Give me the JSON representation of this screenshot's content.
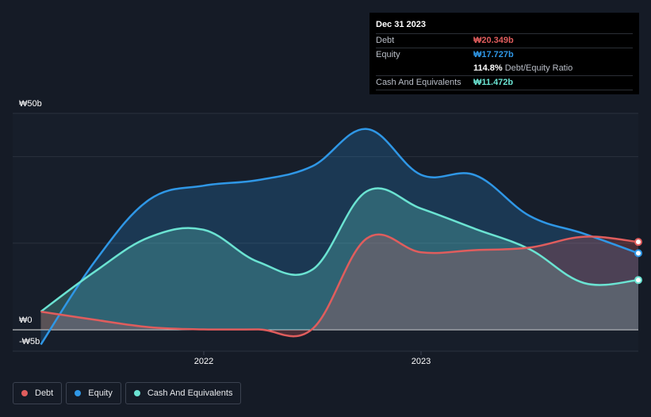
{
  "tooltip": {
    "date": "Dec 31 2023",
    "rows": [
      {
        "label": "Debt",
        "value": "₩20.349b",
        "color": "#e05d5d"
      },
      {
        "label": "Equity",
        "value": "₩17.727b",
        "color": "#2f97e6"
      },
      {
        "label": "",
        "value": "114.8%",
        "suffix": "Debt/Equity Ratio",
        "color": "#ffffff"
      },
      {
        "label": "Cash And Equivalents",
        "value": "₩11.472b",
        "color": "#6be3d2"
      }
    ]
  },
  "legend": [
    {
      "label": "Debt",
      "color": "#e05d5d"
    },
    {
      "label": "Equity",
      "color": "#2f97e6"
    },
    {
      "label": "Cash And Equivalents",
      "color": "#6be3d2"
    }
  ],
  "chart_data": {
    "type": "area",
    "title": "",
    "ylim": [
      -5,
      50
    ],
    "yticks": [
      {
        "value": 50,
        "label": "₩50b"
      },
      {
        "value": 0,
        "label": "₩0"
      },
      {
        "value": -5,
        "label": "-₩5b"
      }
    ],
    "xticks": [
      {
        "value": 2022.0,
        "label": "2022"
      },
      {
        "value": 2023.0,
        "label": "2023"
      }
    ],
    "xlim": [
      2021.12,
      2023.98
    ],
    "units": "₩ billions",
    "series": [
      {
        "name": "Equity",
        "color": "#2f97e6",
        "x": [
          2021.25,
          2021.5,
          2021.75,
          2022.0,
          2022.25,
          2022.5,
          2022.75,
          2023.0,
          2023.25,
          2023.5,
          2023.75,
          2024.0
        ],
        "values": [
          -3.4,
          15.9,
          30.1,
          33.3,
          34.6,
          37.8,
          46.4,
          35.8,
          35.7,
          26.3,
          22.2,
          17.7
        ]
      },
      {
        "name": "Cash And Equivalents",
        "color": "#6be3d2",
        "x": [
          2021.25,
          2021.5,
          2021.75,
          2022.0,
          2022.25,
          2022.5,
          2022.75,
          2023.0,
          2023.25,
          2023.5,
          2023.75,
          2024.0
        ],
        "values": [
          4.2,
          13.5,
          21.4,
          23.1,
          15.7,
          13.9,
          32.0,
          28.0,
          23.3,
          18.6,
          10.8,
          11.5
        ]
      },
      {
        "name": "Debt",
        "color": "#e05d5d",
        "x": [
          2021.25,
          2021.5,
          2021.75,
          2022.0,
          2022.25,
          2022.5,
          2022.75,
          2023.0,
          2023.25,
          2023.5,
          2023.75,
          2024.0
        ],
        "values": [
          4.2,
          2.3,
          0.6,
          0.1,
          0.1,
          0.2,
          21.1,
          17.9,
          18.4,
          19.0,
          21.5,
          20.3
        ]
      }
    ]
  }
}
